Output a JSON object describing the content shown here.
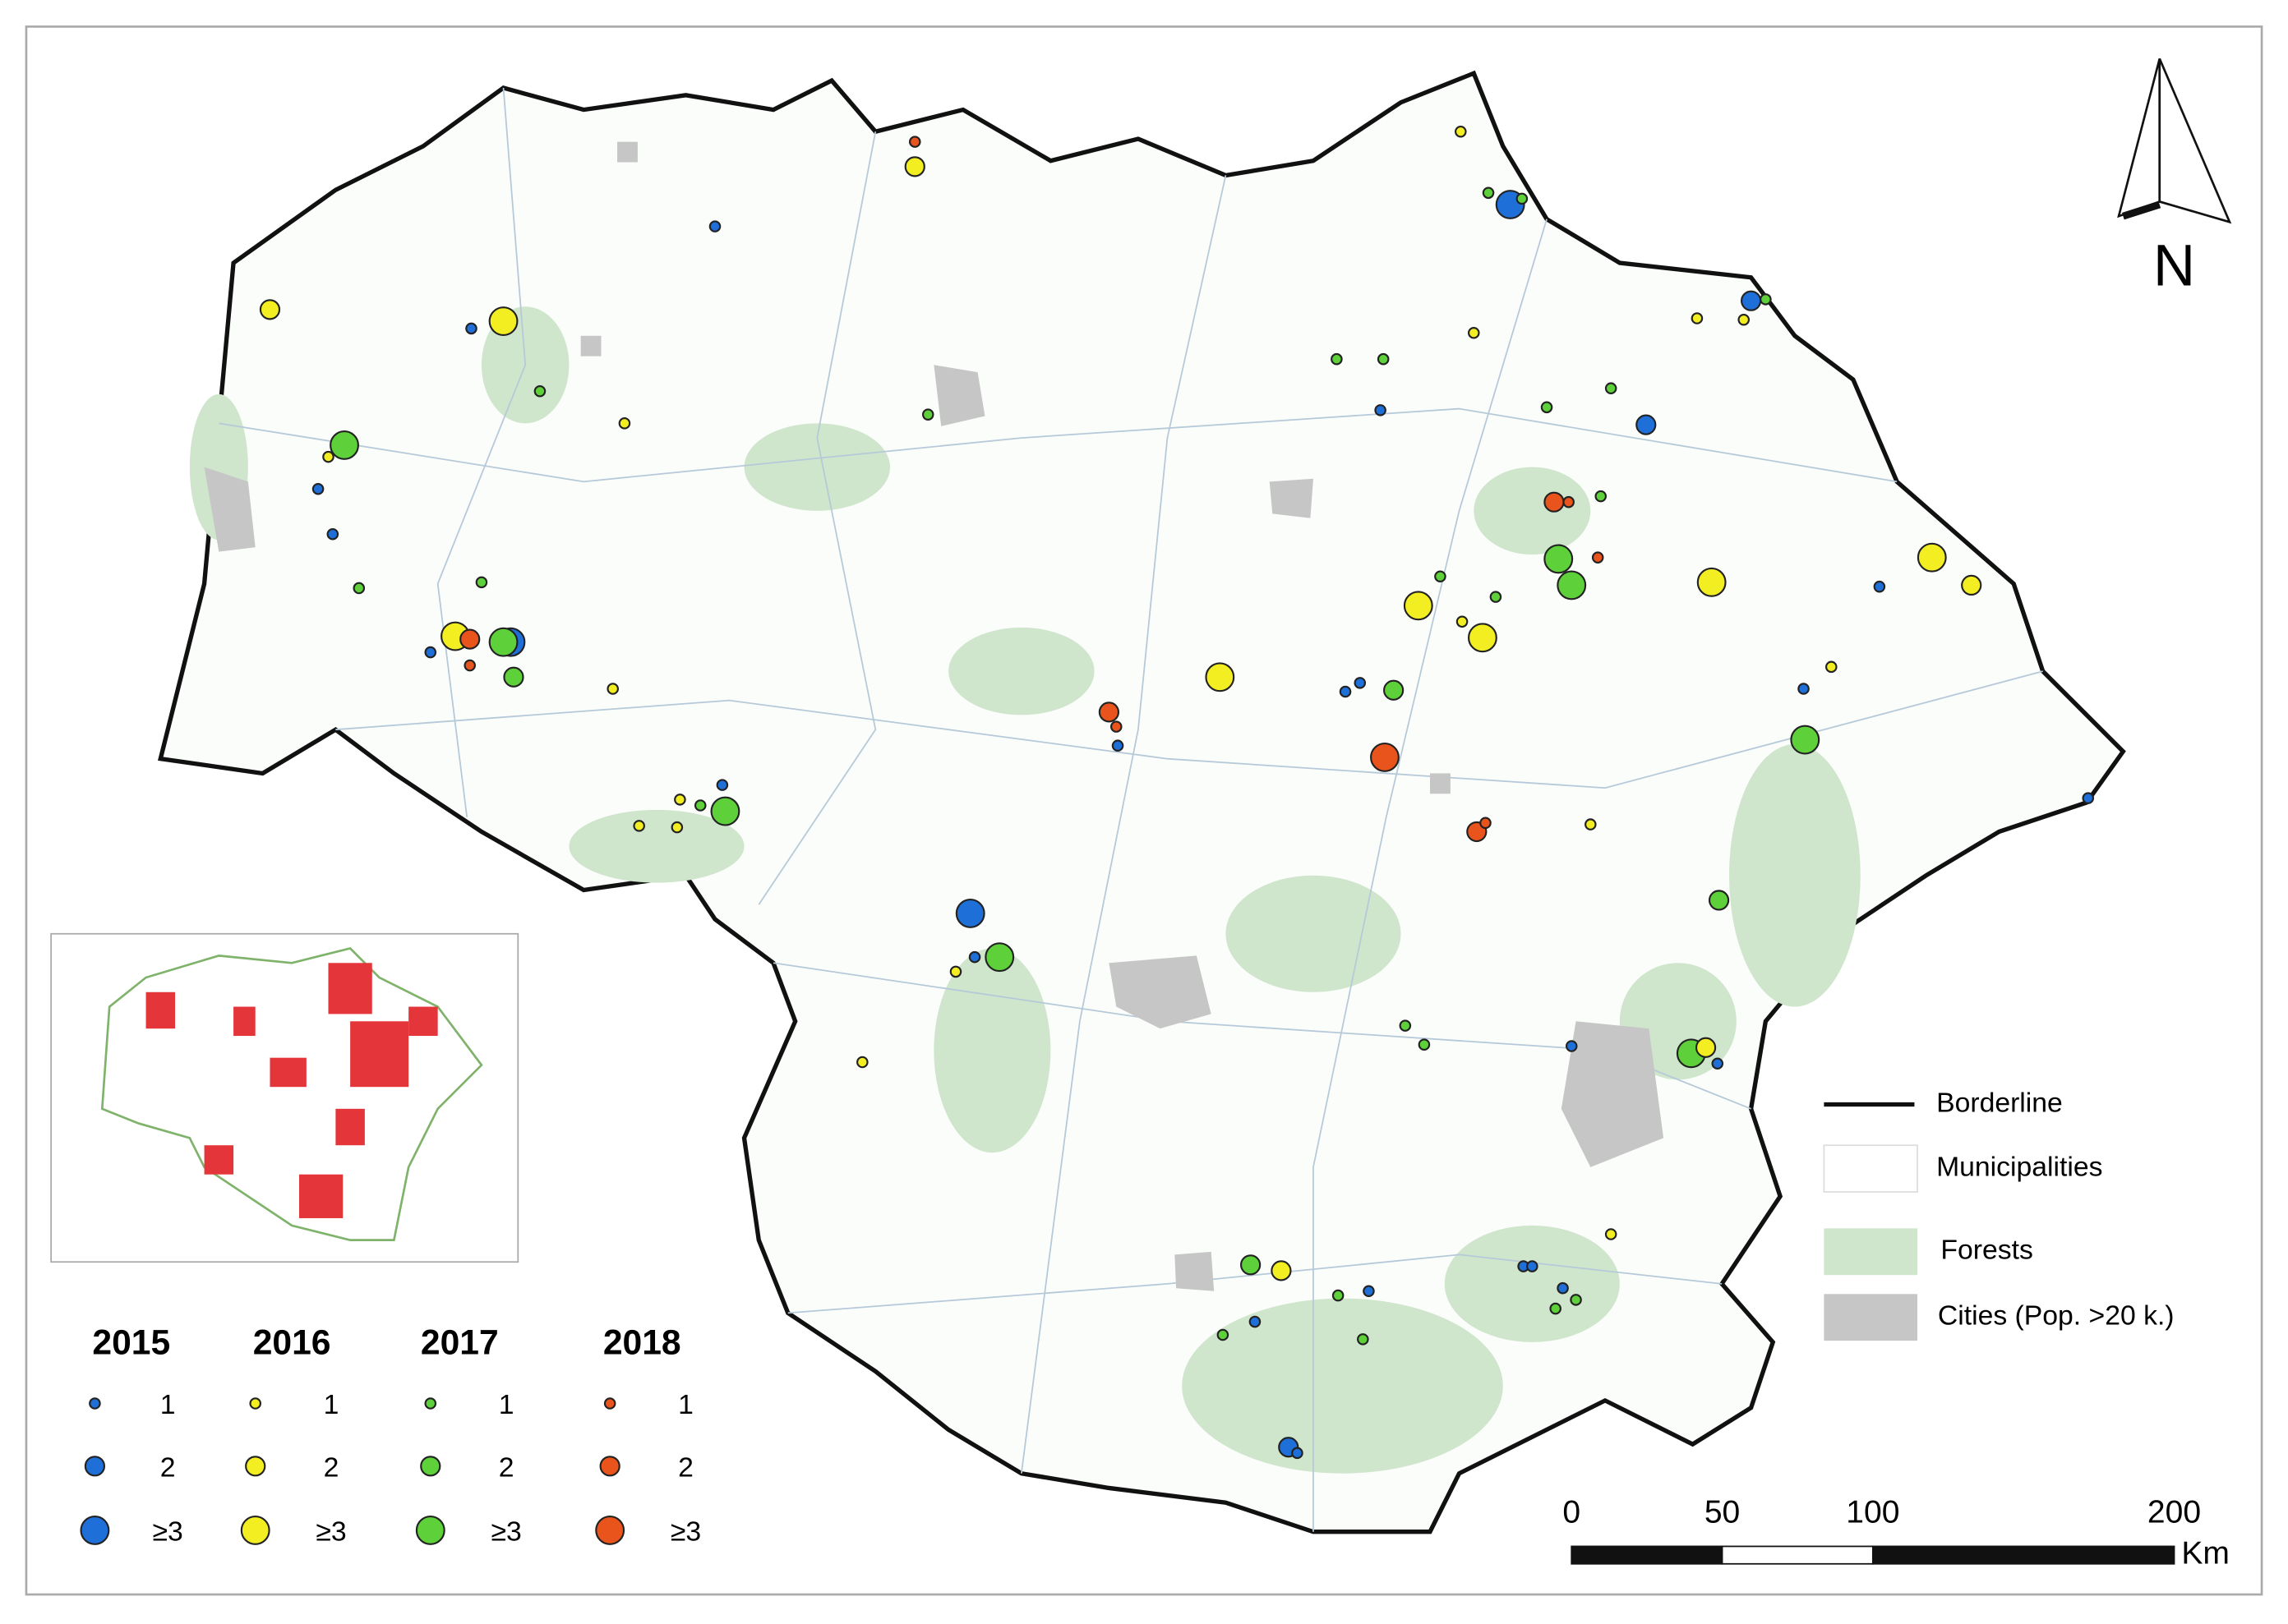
{
  "legend": {
    "items": [
      {
        "label": "Borderline"
      },
      {
        "label": "Municipalities"
      },
      {
        "label": "Forests"
      },
      {
        "label": "Cities (Pop. >20 k.)"
      }
    ]
  },
  "years": [
    {
      "year": "2015",
      "color": "#1f6fd8",
      "sizes": [
        "1",
        "2",
        "≥3"
      ]
    },
    {
      "year": "2016",
      "color": "#f3ee22",
      "sizes": [
        "1",
        "2",
        "≥3"
      ]
    },
    {
      "year": "2017",
      "color": "#5ed13a",
      "sizes": [
        "1",
        "2",
        "≥3"
      ]
    },
    {
      "year": "2018",
      "color": "#e8541c",
      "sizes": [
        "1",
        "2",
        "≥3"
      ]
    }
  ],
  "scale_bar": {
    "ticks": [
      0,
      50,
      100,
      200
    ],
    "unit": "Km"
  },
  "north": "N"
}
